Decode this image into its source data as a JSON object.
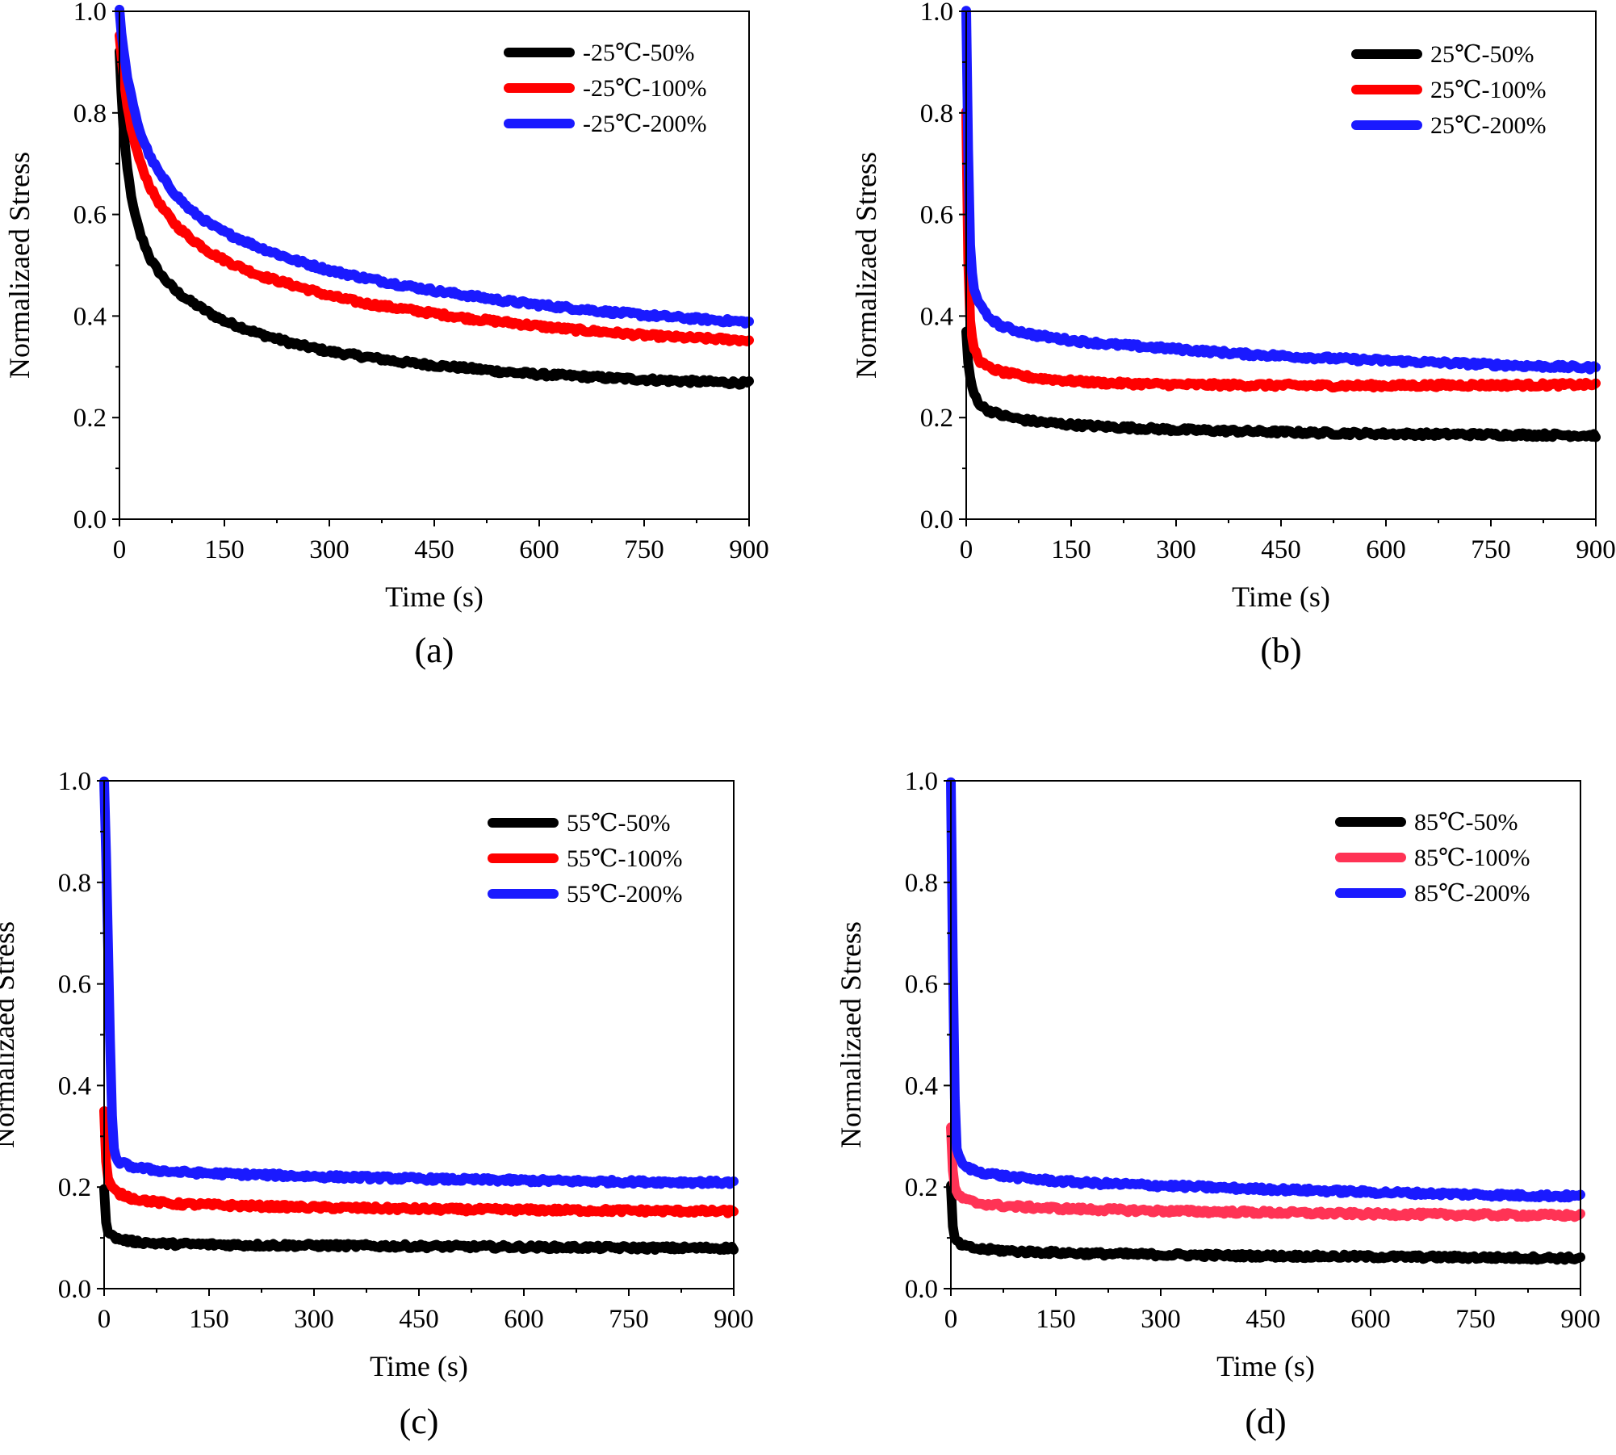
{
  "chart_data": [
    {
      "type": "line",
      "panel": "a",
      "caption": "(a)",
      "xlabel": "Time (s)",
      "ylabel": "Normalizaed Stress",
      "xlim": [
        0,
        900
      ],
      "ylim": [
        0,
        1.0
      ],
      "xticks": [
        0,
        150,
        300,
        450,
        600,
        750,
        900
      ],
      "yticks": [
        0.0,
        0.2,
        0.4,
        0.6,
        0.8,
        1.0
      ],
      "ytick_labels": [
        "0.0",
        "0.2",
        "0.4",
        "0.6",
        "0.8",
        "1.0"
      ],
      "legend_position": "top-right",
      "series": [
        {
          "name": "-25℃-50%",
          "color": "#000000",
          "x": [
            0,
            5,
            10,
            20,
            30,
            45,
            60,
            80,
            100,
            130,
            150,
            200,
            250,
            300,
            350,
            400,
            450,
            500,
            550,
            600,
            650,
            700,
            750,
            800,
            850,
            900
          ],
          "y": [
            0.92,
            0.78,
            0.7,
            0.61,
            0.56,
            0.51,
            0.48,
            0.45,
            0.43,
            0.405,
            0.39,
            0.365,
            0.345,
            0.33,
            0.32,
            0.31,
            0.303,
            0.297,
            0.29,
            0.285,
            0.282,
            0.278,
            0.275,
            0.272,
            0.27,
            0.268
          ]
        },
        {
          "name": "-25℃-100%",
          "color": "#ff0000",
          "x": [
            0,
            5,
            10,
            20,
            30,
            45,
            60,
            80,
            100,
            130,
            150,
            200,
            250,
            300,
            350,
            400,
            450,
            500,
            550,
            600,
            650,
            700,
            750,
            800,
            850,
            900
          ],
          "y": [
            0.95,
            0.88,
            0.82,
            0.75,
            0.7,
            0.65,
            0.615,
            0.58,
            0.555,
            0.525,
            0.51,
            0.48,
            0.46,
            0.44,
            0.425,
            0.415,
            0.405,
            0.395,
            0.388,
            0.38,
            0.373,
            0.368,
            0.362,
            0.358,
            0.355,
            0.352
          ]
        },
        {
          "name": "-25℃-200%",
          "color": "#1a1aff",
          "x": [
            0,
            5,
            10,
            20,
            30,
            45,
            60,
            80,
            100,
            130,
            150,
            200,
            250,
            300,
            350,
            400,
            450,
            500,
            550,
            600,
            650,
            700,
            750,
            800,
            850,
            900
          ],
          "y": [
            1.0,
            0.93,
            0.88,
            0.81,
            0.76,
            0.71,
            0.675,
            0.64,
            0.61,
            0.58,
            0.565,
            0.535,
            0.51,
            0.49,
            0.475,
            0.462,
            0.45,
            0.44,
            0.43,
            0.422,
            0.415,
            0.408,
            0.402,
            0.397,
            0.392,
            0.388
          ]
        }
      ]
    },
    {
      "type": "line",
      "panel": "b",
      "caption": "(b)",
      "xlabel": "Time (s)",
      "ylabel": "Normalizaed Stress",
      "xlim": [
        0,
        900
      ],
      "ylim": [
        0,
        1.0
      ],
      "xticks": [
        0,
        150,
        300,
        450,
        600,
        750,
        900
      ],
      "yticks": [
        0.0,
        0.2,
        0.4,
        0.6,
        0.8,
        1.0
      ],
      "ytick_labels": [
        "0.0",
        "0.2",
        "0.4",
        "0.6",
        "0.8",
        "1.0"
      ],
      "legend_position": "top-right",
      "series": [
        {
          "name": "25℃-50%",
          "color": "#000000",
          "x": [
            0,
            2,
            5,
            10,
            20,
            30,
            50,
            75,
            100,
            150,
            200,
            300,
            400,
            500,
            600,
            700,
            800,
            900
          ],
          "y": [
            0.37,
            0.32,
            0.28,
            0.25,
            0.225,
            0.215,
            0.205,
            0.197,
            0.192,
            0.186,
            0.182,
            0.176,
            0.173,
            0.17,
            0.168,
            0.167,
            0.166,
            0.165
          ]
        },
        {
          "name": "25℃-100%",
          "color": "#ff0000",
          "x": [
            0,
            2,
            4,
            6,
            10,
            20,
            30,
            50,
            75,
            100,
            150,
            200,
            300,
            400,
            500,
            600,
            700,
            800,
            900
          ],
          "y": [
            0.8,
            0.55,
            0.45,
            0.38,
            0.34,
            0.31,
            0.3,
            0.29,
            0.283,
            0.278,
            0.272,
            0.268,
            0.265,
            0.264,
            0.263,
            0.263,
            0.264,
            0.264,
            0.265
          ]
        },
        {
          "name": "25℃-200%",
          "color": "#1a1aff",
          "x": [
            0,
            2,
            4,
            6,
            10,
            20,
            30,
            50,
            75,
            100,
            150,
            200,
            300,
            400,
            500,
            600,
            700,
            800,
            900
          ],
          "y": [
            1.0,
            0.8,
            0.62,
            0.52,
            0.46,
            0.42,
            0.4,
            0.38,
            0.37,
            0.362,
            0.352,
            0.345,
            0.335,
            0.325,
            0.318,
            0.312,
            0.307,
            0.302,
            0.298
          ]
        }
      ]
    },
    {
      "type": "line",
      "panel": "c",
      "caption": "(c)",
      "xlabel": "Time (s)",
      "ylabel": "Normalizaed Stress",
      "xlim": [
        0,
        900
      ],
      "ylim": [
        0,
        1.0
      ],
      "xticks": [
        0,
        150,
        300,
        450,
        600,
        750,
        900
      ],
      "yticks": [
        0.0,
        0.2,
        0.4,
        0.6,
        0.8,
        1.0
      ],
      "ytick_labels": [
        "0.0",
        "0.2",
        "0.4",
        "0.6",
        "0.8",
        "1.0"
      ],
      "legend_position": "top-right",
      "series": [
        {
          "name": "55℃-50%",
          "color": "#000000",
          "x": [
            0,
            2,
            5,
            10,
            20,
            40,
            75,
            100,
            150,
            200,
            300,
            400,
            500,
            600,
            700,
            800,
            900
          ],
          "y": [
            0.2,
            0.14,
            0.115,
            0.105,
            0.098,
            0.093,
            0.089,
            0.088,
            0.087,
            0.086,
            0.085,
            0.084,
            0.083,
            0.082,
            0.081,
            0.08,
            0.08
          ]
        },
        {
          "name": "55℃-100%",
          "color": "#ff0000",
          "x": [
            0,
            2,
            5,
            10,
            20,
            40,
            75,
            100,
            150,
            200,
            300,
            400,
            500,
            600,
            700,
            800,
            900
          ],
          "y": [
            0.35,
            0.26,
            0.22,
            0.2,
            0.188,
            0.178,
            0.17,
            0.167,
            0.165,
            0.163,
            0.16,
            0.158,
            0.156,
            0.155,
            0.154,
            0.153,
            0.152
          ]
        },
        {
          "name": "55℃-200%",
          "color": "#1a1aff",
          "x": [
            0,
            3,
            6,
            9,
            12,
            15,
            20,
            40,
            75,
            100,
            150,
            200,
            300,
            400,
            500,
            600,
            700,
            800,
            900
          ],
          "y": [
            1.0,
            0.85,
            0.65,
            0.45,
            0.3,
            0.26,
            0.25,
            0.24,
            0.233,
            0.23,
            0.227,
            0.225,
            0.221,
            0.218,
            0.215,
            0.213,
            0.211,
            0.21,
            0.209
          ]
        }
      ]
    },
    {
      "type": "line",
      "panel": "d",
      "caption": "(d)",
      "xlabel": "Time (s)",
      "ylabel": "Normalizaed Stress",
      "xlim": [
        0,
        900
      ],
      "ylim": [
        0,
        1.0
      ],
      "xticks": [
        0,
        150,
        300,
        450,
        600,
        750,
        900
      ],
      "yticks": [
        0.0,
        0.2,
        0.4,
        0.6,
        0.8,
        1.0
      ],
      "ytick_labels": [
        "0.0",
        "0.2",
        "0.4",
        "0.6",
        "0.8",
        "1.0"
      ],
      "legend_position": "top-right",
      "series": [
        {
          "name": "85℃-50%",
          "color": "#000000",
          "x": [
            0,
            2,
            5,
            10,
            20,
            40,
            75,
            100,
            150,
            200,
            300,
            400,
            500,
            600,
            700,
            800,
            900
          ],
          "y": [
            0.2,
            0.13,
            0.1,
            0.09,
            0.083,
            0.078,
            0.075,
            0.073,
            0.071,
            0.069,
            0.067,
            0.065,
            0.064,
            0.063,
            0.062,
            0.061,
            0.06
          ]
        },
        {
          "name": "85℃-100%",
          "color": "#ff3355",
          "x": [
            0,
            2,
            5,
            10,
            20,
            40,
            75,
            100,
            150,
            200,
            300,
            400,
            500,
            600,
            700,
            800,
            900
          ],
          "y": [
            0.32,
            0.24,
            0.2,
            0.185,
            0.175,
            0.168,
            0.163,
            0.161,
            0.158,
            0.156,
            0.153,
            0.151,
            0.149,
            0.147,
            0.146,
            0.145,
            0.144
          ]
        },
        {
          "name": "85℃-200%",
          "color": "#1a1aff",
          "x": [
            0,
            2,
            4,
            6,
            8,
            12,
            20,
            40,
            75,
            100,
            150,
            200,
            300,
            400,
            500,
            600,
            700,
            800,
            900
          ],
          "y": [
            1.0,
            0.75,
            0.5,
            0.35,
            0.28,
            0.255,
            0.24,
            0.23,
            0.222,
            0.218,
            0.212,
            0.208,
            0.203,
            0.198,
            0.194,
            0.19,
            0.187,
            0.184,
            0.182
          ]
        }
      ]
    }
  ]
}
